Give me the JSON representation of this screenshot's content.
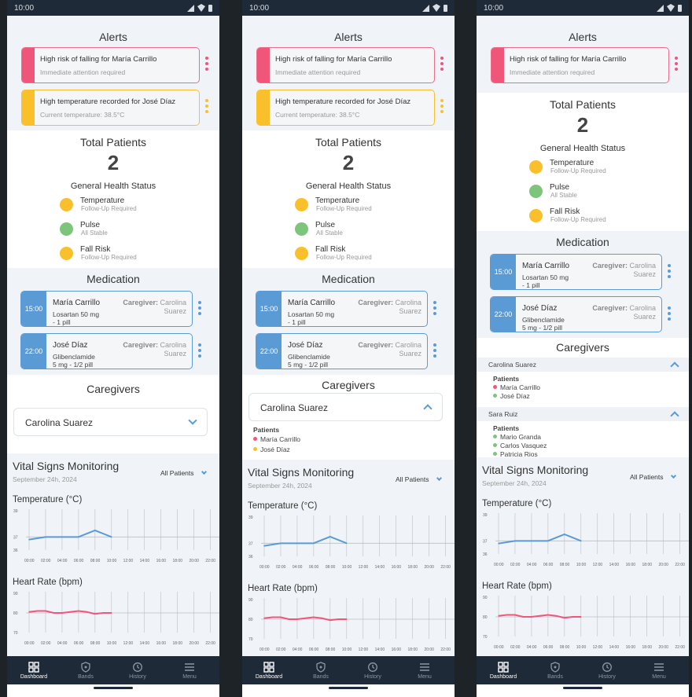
{
  "status": {
    "time": "10:00"
  },
  "alerts": {
    "title": "Alerts",
    "items": [
      {
        "title": "High risk of falling for María Carrillo",
        "detail": "Immediate attention required",
        "level": "red"
      },
      {
        "title": "High temperature recorded for José Díaz",
        "detail": "Current temperature: 38.5°C",
        "level": "yellow"
      }
    ]
  },
  "total": {
    "title": "Total Patients",
    "count": "2",
    "health_title": "General Health Status",
    "statuses": [
      {
        "name": "Temperature",
        "note": "Follow-Up Required",
        "color": "#f9c02c"
      },
      {
        "name": "Pulse",
        "note": "All Stable",
        "color": "#7cc57a"
      },
      {
        "name": "Fall Risk",
        "note": "Follow-Up Required",
        "color": "#f9c02c"
      }
    ]
  },
  "medication": {
    "title": "Medication",
    "caregiver_label": "Caregiver:",
    "items": [
      {
        "time": "15:00",
        "patient": "María Carrillo",
        "drug": "Losartan 50 mg",
        "dose": "- 1 pill",
        "caregiver_first": "Carolina",
        "caregiver_last": "Suarez"
      },
      {
        "time": "22:00",
        "patient": "José Díaz",
        "drug": "Glibenclamide",
        "dose": "5 mg  - 1/2 pill",
        "caregiver_first": "Carolina",
        "caregiver_last": "Suarez"
      }
    ]
  },
  "caregivers": {
    "title": "Caregivers",
    "patients_label": "Patients",
    "list": [
      {
        "name": "Carolina Suarez",
        "patients": [
          "María Carrillo",
          "José Díaz"
        ]
      },
      {
        "name": "Sara Ruiz",
        "patients": [
          "Mario Granda",
          "Carlos Vasquez",
          "Patricia Rios"
        ]
      }
    ]
  },
  "vitals": {
    "title": "Vital Signs Monitoring",
    "date": "September 24h, 2024",
    "filter": "All Patients",
    "x_ticks": [
      "00:00",
      "02:00",
      "04:00",
      "06:00",
      "08:00",
      "10:00",
      "12:00",
      "14:00",
      "16:00",
      "18:00",
      "20:00",
      "22:00"
    ]
  },
  "chart_data": [
    {
      "type": "line",
      "title": "Temperature (°C)",
      "x": [
        "00:00",
        "02:00",
        "04:00",
        "06:00",
        "08:00",
        "10:00"
      ],
      "series": [
        {
          "values": [
            36.8,
            37.0,
            37.0,
            37.0,
            37.5,
            37.0
          ],
          "color": "#5b9bd5"
        }
      ],
      "y_ticks": [
        "39",
        "37",
        "36"
      ],
      "ylim": [
        36,
        39
      ],
      "grid": true
    },
    {
      "type": "line",
      "title": "Heart Rate (bpm)",
      "x": [
        "00:00",
        "01:00",
        "02:00",
        "03:00",
        "04:00",
        "05:00",
        "06:00",
        "07:00",
        "08:00",
        "09:00",
        "10:00"
      ],
      "series": [
        {
          "values": [
            80.5,
            81,
            81,
            80,
            80,
            80.5,
            81,
            80.5,
            79.5,
            80,
            80
          ],
          "color": "#f0567a"
        }
      ],
      "y_ticks": [
        "90",
        "80",
        "70"
      ],
      "ylim": [
        70,
        90
      ],
      "grid": true
    }
  ],
  "nav": {
    "items": [
      {
        "label": "Dashboard",
        "icon": "grid-icon",
        "active": true
      },
      {
        "label": "Bands",
        "icon": "shield-icon",
        "active": false
      },
      {
        "label": "History",
        "icon": "history-icon",
        "active": false
      },
      {
        "label": "Menu",
        "icon": "menu-icon",
        "active": false
      }
    ]
  },
  "screens": [
    {
      "left": 9,
      "variant": "collapsed"
    },
    {
      "left": 308,
      "variant": "expanded"
    },
    {
      "left": 606,
      "variant": "list"
    }
  ]
}
